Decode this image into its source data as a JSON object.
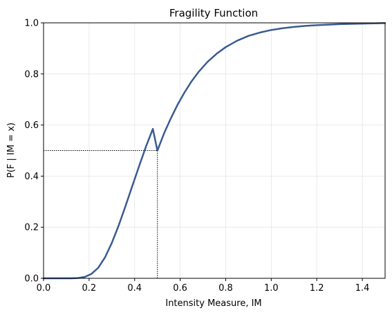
{
  "chart_data": {
    "type": "line",
    "title": "Fragility Function",
    "xlabel": "Intensity Measure, IM",
    "ylabel": "P(F | IM = x)",
    "xlim": [
      0.0,
      1.5
    ],
    "ylim": [
      0.0,
      1.0
    ],
    "x_ticks": [
      "0.0",
      "0.2",
      "0.4",
      "0.6",
      "0.8",
      "1.0",
      "1.2",
      "1.4"
    ],
    "x_tick_values": [
      0.0,
      0.2,
      0.4,
      0.6,
      0.8,
      1.0,
      1.2,
      1.4
    ],
    "y_ticks": [
      "0.0",
      "0.2",
      "0.4",
      "0.6",
      "0.8",
      "1.0"
    ],
    "y_tick_values": [
      0.0,
      0.2,
      0.4,
      0.6,
      0.8,
      1.0
    ],
    "grid": true,
    "series": [
      {
        "color": "#3a5a92",
        "x": [
          0.0,
          0.03,
          0.06,
          0.09,
          0.12,
          0.15,
          0.18,
          0.21,
          0.24,
          0.27,
          0.3,
          0.33,
          0.36,
          0.39,
          0.42,
          0.45,
          0.48,
          0.5,
          0.53,
          0.56,
          0.59,
          0.62,
          0.65,
          0.68,
          0.72,
          0.76,
          0.8,
          0.85,
          0.9,
          0.95,
          1.0,
          1.05,
          1.1,
          1.15,
          1.2,
          1.25,
          1.3,
          1.35,
          1.4,
          1.45,
          1.5
        ],
        "y": [
          0.0,
          0.0,
          0.0,
          0.0,
          0.0,
          0.001,
          0.005,
          0.017,
          0.041,
          0.082,
          0.139,
          0.207,
          0.283,
          0.362,
          0.44,
          0.516,
          0.585,
          0.5,
          0.569,
          0.628,
          0.682,
          0.729,
          0.771,
          0.807,
          0.847,
          0.879,
          0.905,
          0.93,
          0.949,
          0.962,
          0.972,
          0.979,
          0.984,
          0.988,
          0.991,
          0.993,
          0.995,
          0.996,
          0.997,
          0.998,
          0.999
        ]
      }
    ],
    "reference_point": {
      "x": 0.5,
      "y": 0.5,
      "color": "#000000"
    }
  }
}
